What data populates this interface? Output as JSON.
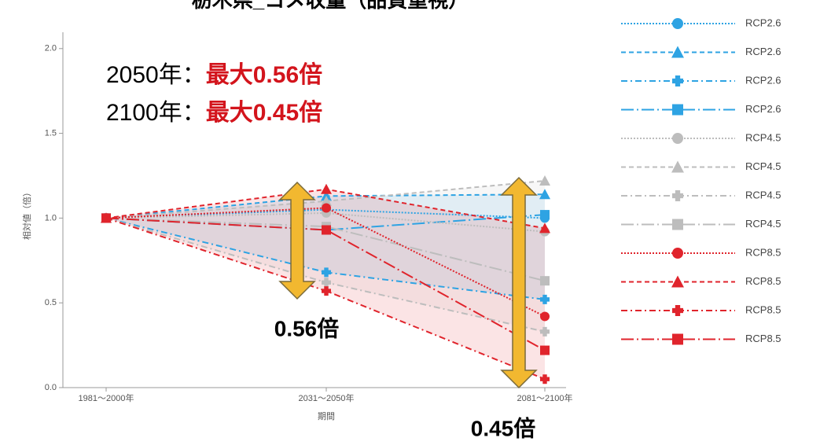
{
  "chart_data": {
    "type": "line",
    "title": "栃木県_コメ収量（品質重視）",
    "x_label": "期間",
    "y_label": "相対値（倍）",
    "categories": [
      "1981～2000年",
      "2031～2050年",
      "2081～2100年"
    ],
    "ylim": [
      0,
      2.05
    ],
    "yticks": [
      {
        "value": 0,
        "label": "0.0"
      },
      0.5,
      {
        "value": 1,
        "label": "1.0"
      },
      1.5,
      {
        "value": 2,
        "label": "2.0"
      }
    ],
    "series": [
      {
        "name": "RCP2.6",
        "color": "#2ea3e3",
        "marker": "circle",
        "dash": "dotted",
        "values": [
          1.0,
          1.05,
          1.0
        ]
      },
      {
        "name": "RCP2.6",
        "color": "#2ea3e3",
        "marker": "triangle",
        "dash": "dashed",
        "values": [
          1.0,
          1.13,
          1.14
        ]
      },
      {
        "name": "RCP2.6",
        "color": "#2ea3e3",
        "marker": "plus",
        "dash": "dashdot",
        "values": [
          1.0,
          0.68,
          0.52
        ]
      },
      {
        "name": "RCP2.6",
        "color": "#2ea3e3",
        "marker": "square",
        "dash": "longdashdot",
        "values": [
          1.0,
          0.93,
          1.02
        ]
      },
      {
        "name": "RCP4.5",
        "color": "#bdbdbd",
        "marker": "circle",
        "dash": "dotted",
        "values": [
          1.0,
          1.03,
          0.92
        ]
      },
      {
        "name": "RCP4.5",
        "color": "#bdbdbd",
        "marker": "triangle",
        "dash": "dashed",
        "values": [
          1.0,
          1.1,
          1.22
        ]
      },
      {
        "name": "RCP4.5",
        "color": "#bdbdbd",
        "marker": "plus",
        "dash": "dashdot",
        "values": [
          1.0,
          0.62,
          0.33
        ]
      },
      {
        "name": "RCP4.5",
        "color": "#bdbdbd",
        "marker": "square",
        "dash": "longdashdot",
        "values": [
          1.0,
          0.95,
          0.63
        ]
      },
      {
        "name": "RCP8.5",
        "color": "#e0242c",
        "marker": "circle",
        "dash": "dotted",
        "values": [
          1.0,
          1.06,
          0.42
        ]
      },
      {
        "name": "RCP8.5",
        "color": "#e0242c",
        "marker": "triangle",
        "dash": "dashed",
        "values": [
          1.0,
          1.17,
          0.94
        ]
      },
      {
        "name": "RCP8.5",
        "color": "#e0242c",
        "marker": "plus",
        "dash": "dashdot",
        "values": [
          1.0,
          0.57,
          0.05
        ]
      },
      {
        "name": "RCP8.5",
        "color": "#e0242c",
        "marker": "square",
        "dash": "longdashdot",
        "values": [
          1.0,
          0.93,
          0.22
        ]
      }
    ],
    "annotations": {
      "line1_prefix": "2050年：",
      "line1_value": "最大0.56倍",
      "line2_prefix": "2100年：",
      "line2_value": "最大0.45倍",
      "arrow1_label": "0.56倍",
      "arrow2_label": "0.45倍"
    }
  }
}
